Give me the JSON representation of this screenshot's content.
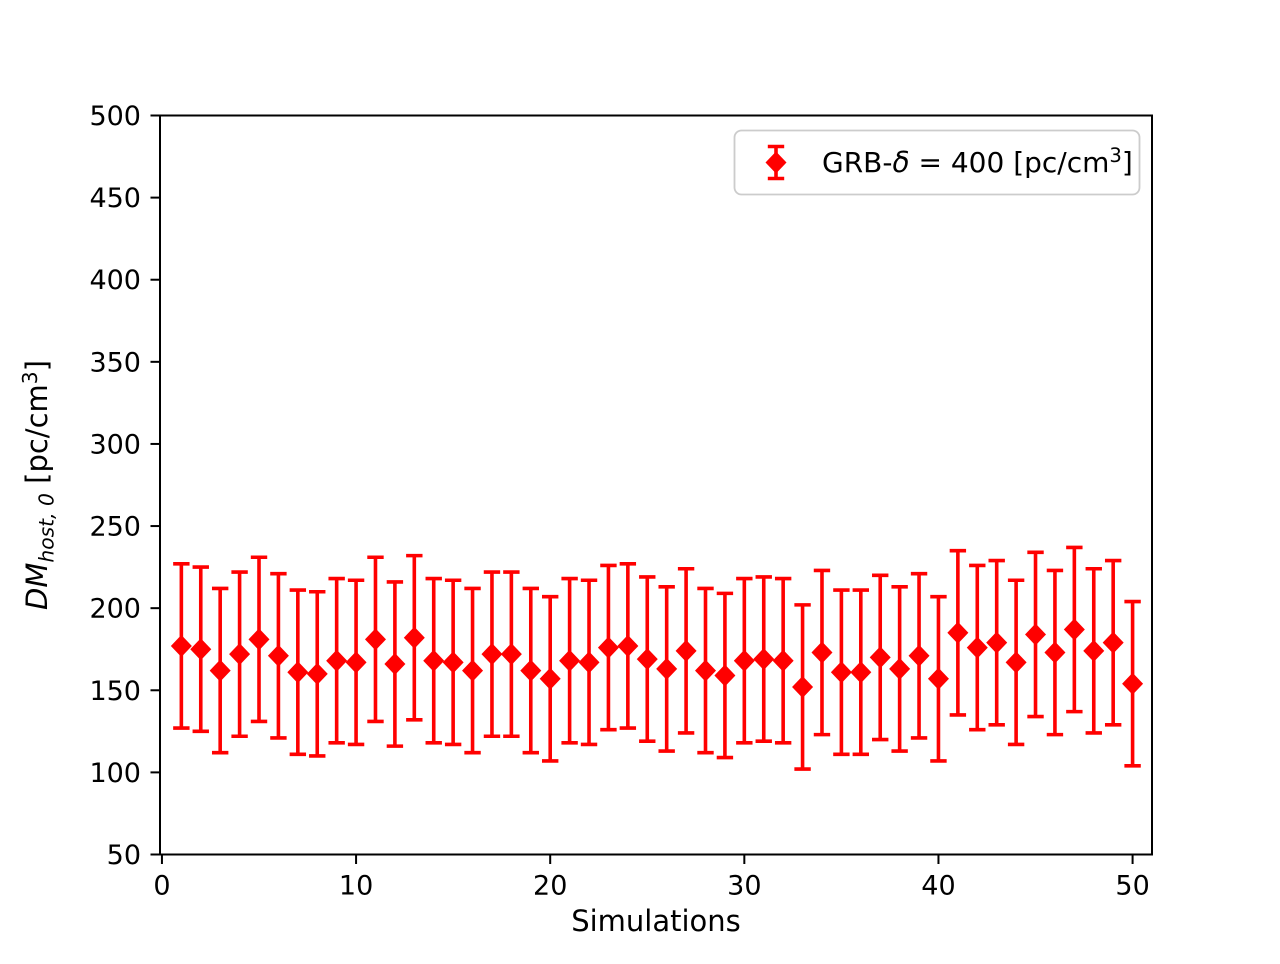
{
  "chart_data": {
    "type": "scatter",
    "title": "",
    "xlabel": "Simulations",
    "ylabel": "DM_host, 0 [pc/cm^3]",
    "ylabel_parts": [
      {
        "t": "DM",
        "style": "italic"
      },
      {
        "t": "host, 0",
        "style": "sub-italic"
      },
      {
        "t": " [pc/cm",
        "style": "normal"
      },
      {
        "t": "3",
        "style": "sup"
      },
      {
        "t": "]",
        "style": "normal"
      }
    ],
    "legend": {
      "position": "upper right",
      "label": "GRB-δ = 400 [pc/cm³]",
      "label_parts": [
        {
          "t": "GRB-",
          "style": "normal"
        },
        {
          "t": "δ",
          "style": "italic"
        },
        {
          "t": " = 400 [pc/cm",
          "style": "normal"
        },
        {
          "t": "3",
          "style": "sup"
        },
        {
          "t": "]",
          "style": "normal"
        }
      ],
      "frame_color": "#cccccc",
      "background": "#ffffff"
    },
    "x": [
      1,
      2,
      3,
      4,
      5,
      6,
      7,
      8,
      9,
      10,
      11,
      12,
      13,
      14,
      15,
      16,
      17,
      18,
      19,
      20,
      21,
      22,
      23,
      24,
      25,
      26,
      27,
      28,
      29,
      30,
      31,
      32,
      33,
      34,
      35,
      36,
      37,
      38,
      39,
      40,
      41,
      42,
      43,
      44,
      45,
      46,
      47,
      48,
      49,
      50
    ],
    "series": [
      {
        "name": "GRB-δ = 400 [pc/cm³]",
        "marker": "diamond",
        "color": "#ff0000",
        "values": [
          177,
          175,
          162,
          172,
          181,
          171,
          161,
          160,
          168,
          167,
          181,
          166,
          182,
          168,
          167,
          162,
          172,
          172,
          162,
          157,
          168,
          167,
          176,
          177,
          169,
          163,
          174,
          162,
          159,
          168,
          169,
          168,
          152,
          173,
          161,
          161,
          170,
          163,
          171,
          157,
          185,
          176,
          179,
          167,
          184,
          173,
          187,
          174,
          179,
          154
        ],
        "yerr": 50
      }
    ],
    "xlim": [
      -0.1,
      51
    ],
    "ylim": [
      50,
      500
    ],
    "xticks": {
      "values": [
        0,
        10,
        20,
        30,
        40,
        50
      ],
      "labels": [
        "0",
        "10",
        "20",
        "30",
        "40",
        "50"
      ]
    },
    "yticks": {
      "values": [
        50,
        100,
        150,
        200,
        250,
        300,
        350,
        400,
        450,
        500
      ],
      "labels": [
        "50",
        "100",
        "150",
        "200",
        "250",
        "300",
        "350",
        "400",
        "450",
        "500"
      ]
    },
    "grid": false,
    "axis_color": "#000000",
    "text_color": "#000000"
  }
}
